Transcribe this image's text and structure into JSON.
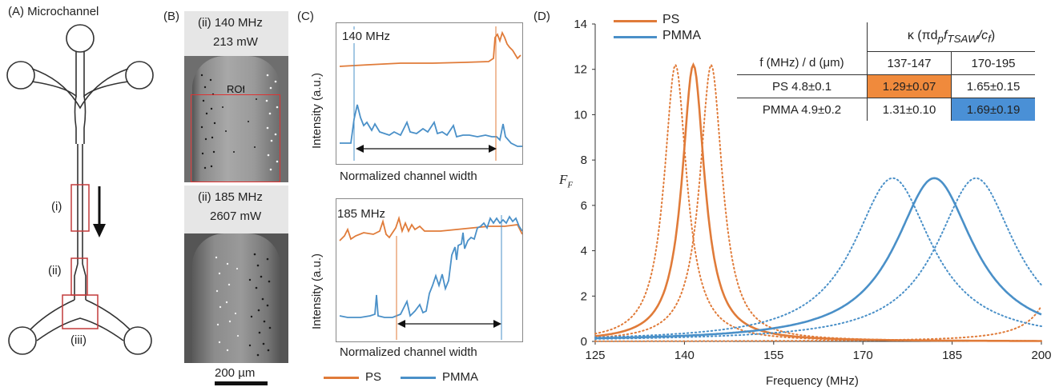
{
  "panelA": {
    "label": "(A) Microchannel",
    "roi_i": "(i)",
    "roi_ii": "(ii)",
    "roi_iii": "(iii)"
  },
  "panelB": {
    "label": "(B)",
    "img1": {
      "line1": "(ii) 140 MHz",
      "line2": "213 mW",
      "roi": "ROI"
    },
    "img2": {
      "line1": "(ii) 185 MHz",
      "line2": "2607 mW"
    },
    "scalebar": "200 µm"
  },
  "panelC": {
    "label": "(C)",
    "plot1": {
      "title": "140 MHz",
      "ylabel": "Intensity (a.u.)",
      "xlabel": "Normalized channel width"
    },
    "plot2": {
      "title": "185 MHz",
      "ylabel": "Intensity (a.u.)",
      "xlabel": "Normalized channel width"
    },
    "legend": {
      "ps": "PS",
      "pmma": "PMMA"
    },
    "colors": {
      "ps": "#e07b39",
      "pmma": "#4a90c8"
    }
  },
  "panelD": {
    "label": "(D)",
    "legend": {
      "ps": "PS",
      "pmma": "PMMA"
    },
    "table": {
      "header_kappa": "κ (πd",
      "header_sub_p": "p",
      "header_f": "f",
      "header_sub_tsaw": "TSAW",
      "header_div": "/c",
      "header_sub_f": "f",
      "header_close": ")",
      "row_label_head": "f (MHz) / d (μm)",
      "col1": "137-147",
      "col2": "170-195",
      "rows": [
        {
          "label": "PS 4.8±0.1",
          "v1": "1.29±0.07",
          "v2": "1.65±0.15"
        },
        {
          "label": "PMMA 4.9±0.2",
          "v1": "1.31±0.10",
          "v2": "1.69±0.19"
        }
      ]
    }
  },
  "chart_data": {
    "type": "line",
    "xlabel": "Frequency (MHz)",
    "ylabel": "F_F",
    "xlim": [
      125,
      200
    ],
    "ylim": [
      0,
      14
    ],
    "xticks": [
      125,
      140,
      155,
      170,
      185,
      200
    ],
    "yticks": [
      0,
      2,
      4,
      6,
      8,
      10,
      12,
      14
    ],
    "grid": false,
    "legend": "top-left",
    "series": [
      {
        "name": "PS",
        "color": "#e07b39",
        "style": "solid",
        "peak_x": 141.5,
        "peak_y": 12.2,
        "hwhm": 2.3
      },
      {
        "name": "PS",
        "color": "#e07b39",
        "style": "dotted",
        "peak_x": 138.5,
        "peak_y": 12.2,
        "hwhm": 2.3
      },
      {
        "name": "PS",
        "color": "#e07b39",
        "style": "dotted",
        "peak_x": 144.5,
        "peak_y": 12.2,
        "hwhm": 2.3
      },
      {
        "name": "PS",
        "color": "#e07b39",
        "style": "dotted",
        "peak_x": 206,
        "peak_y": 12.2,
        "hwhm": 2.3
      },
      {
        "name": "PMMA",
        "color": "#4a90c8",
        "style": "solid",
        "peak_x": 182,
        "peak_y": 7.2,
        "hwhm": 8
      },
      {
        "name": "PMMA",
        "color": "#4a90c8",
        "style": "dotted",
        "peak_x": 175,
        "peak_y": 7.2,
        "hwhm": 8
      },
      {
        "name": "PMMA",
        "color": "#4a90c8",
        "style": "dotted",
        "peak_x": 189,
        "peak_y": 7.2,
        "hwhm": 8
      }
    ]
  }
}
